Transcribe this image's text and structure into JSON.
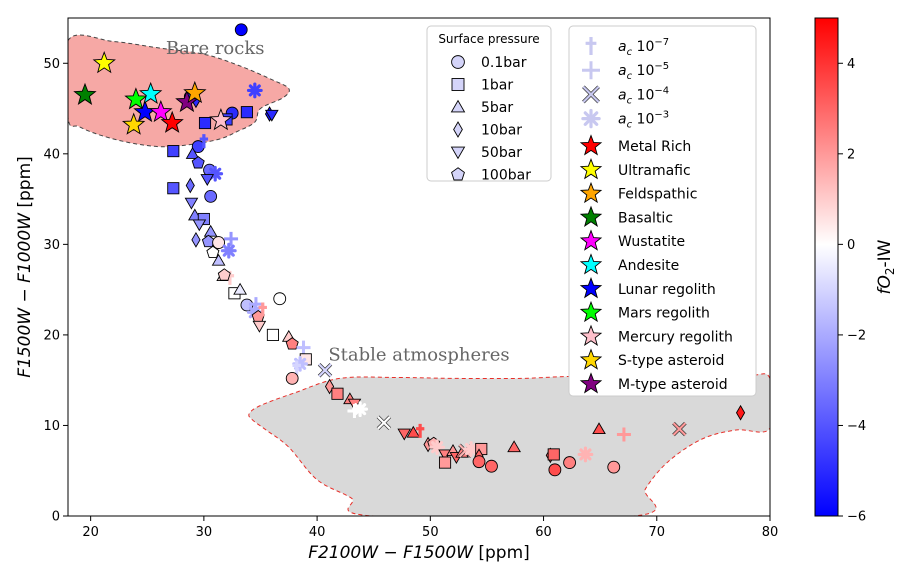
{
  "chart_data": {
    "type": "scatter",
    "xlabel_main": "F2100W − F1500W",
    "xlabel_unit": " [ppm]",
    "ylabel_main": "F1500W − F1000W",
    "ylabel_unit": " [ppm]",
    "xlim": [
      18,
      80
    ],
    "ylim": [
      0,
      55
    ],
    "xticks": [
      20,
      30,
      40,
      50,
      60,
      70,
      80
    ],
    "yticks": [
      0,
      10,
      20,
      30,
      40,
      50
    ],
    "colorbar": {
      "label": "fO2-IW",
      "label_main": "fO",
      "label_sub": "2",
      "label_rest": "-IW",
      "range": [
        -6,
        5
      ],
      "ticks": [
        -6,
        -4,
        -2,
        0,
        2,
        4
      ],
      "tick_labels": [
        "−6",
        "−4",
        "−2",
        "0",
        "2",
        "4"
      ],
      "colors": [
        "#0000ff",
        "#ffffff",
        "#ff0000"
      ]
    },
    "regions": [
      {
        "label": "Bare rocks",
        "label_at": [
          31,
          51
        ],
        "fill": "#f6a8a5",
        "stroke": "#444444",
        "boundary": [
          [
            18,
            52.5
          ],
          [
            22,
            52.4
          ],
          [
            26,
            51.7
          ],
          [
            30,
            51
          ],
          [
            33,
            49.8
          ],
          [
            36,
            48.2
          ],
          [
            37.5,
            47.2
          ],
          [
            37,
            46.2
          ],
          [
            35,
            45
          ],
          [
            34.5,
            43.5
          ],
          [
            33,
            42.5
          ],
          [
            31,
            41.5
          ],
          [
            27,
            40.8
          ],
          [
            24,
            41.1
          ],
          [
            21,
            42
          ],
          [
            19,
            43
          ],
          [
            18,
            44
          ]
        ]
      },
      {
        "label": "Stable atmospheres",
        "label_at": [
          49,
          17.2
        ],
        "fill": "#d9d9d9",
        "stroke": "#e8302a",
        "boundary": [
          [
            80,
            15.2
          ],
          [
            78,
            15.5
          ],
          [
            73,
            15.5
          ],
          [
            70,
            14.6
          ],
          [
            67,
            14.8
          ],
          [
            63,
            15.4
          ],
          [
            58,
            15.2
          ],
          [
            52,
            15.2
          ],
          [
            47,
            15.3
          ],
          [
            42,
            15.2
          ],
          [
            38,
            13.6
          ],
          [
            35,
            12.2
          ],
          [
            34,
            11.3
          ],
          [
            34.3,
            10.6
          ],
          [
            35.5,
            9.5
          ],
          [
            37.5,
            7.6
          ],
          [
            40,
            4
          ],
          [
            43,
            2
          ],
          [
            45,
            0
          ],
          [
            68,
            0
          ],
          [
            69,
            3
          ],
          [
            71,
            6
          ],
          [
            74,
            8.5
          ],
          [
            77,
            9.5
          ],
          [
            80,
            9.7
          ]
        ]
      }
    ],
    "legend_pressure": {
      "title": "Surface pressure",
      "items": [
        {
          "marker": "circle",
          "label": "0.1bar"
        },
        {
          "marker": "square",
          "label": "1bar"
        },
        {
          "marker": "triangle-up",
          "label": "5bar"
        },
        {
          "marker": "diamond-thin",
          "label": "10bar"
        },
        {
          "marker": "triangle-down",
          "label": "50bar"
        },
        {
          "marker": "pentagon",
          "label": "100bar"
        }
      ]
    },
    "legend_mixing": [
      {
        "marker": "dagger",
        "prefix": "a",
        "sub": "c",
        "base": " 10",
        "exp": "−7"
      },
      {
        "marker": "plus",
        "prefix": "a",
        "sub": "c",
        "base": " 10",
        "exp": "−5"
      },
      {
        "marker": "x",
        "prefix": "a",
        "sub": "c",
        "base": " 10",
        "exp": "−4"
      },
      {
        "marker": "asterisk",
        "prefix": "a",
        "sub": "c",
        "base": " 10",
        "exp": "−3"
      }
    ],
    "legend_surfaces": [
      {
        "label": "Metal Rich",
        "color": "#ff0000"
      },
      {
        "label": "Ultramafic",
        "color": "#ffff00"
      },
      {
        "label": "Feldspathic",
        "color": "#ffa500"
      },
      {
        "label": "Basaltic",
        "color": "#008000"
      },
      {
        "label": "Wustatite",
        "color": "#ff00ff"
      },
      {
        "label": "Andesite",
        "color": "#00ffff"
      },
      {
        "label": "Lunar regolith",
        "color": "#0000ff"
      },
      {
        "label": "Mars regolith",
        "color": "#00ff00"
      },
      {
        "label": "Mercury regolith",
        "color": "#ffc0cb"
      },
      {
        "label": "S-type asteroid",
        "color": "#ffd700"
      },
      {
        "label": "M-type asteroid",
        "color": "#800080"
      }
    ],
    "bare_rock_stars": [
      {
        "x": 19.5,
        "y": 46.5,
        "surface": "Basaltic"
      },
      {
        "x": 21.2,
        "y": 50.0,
        "surface": "Ultramafic"
      },
      {
        "x": 23.8,
        "y": 43.2,
        "surface": "S-type asteroid"
      },
      {
        "x": 24.0,
        "y": 46.0,
        "surface": "Mars regolith"
      },
      {
        "x": 24.8,
        "y": 44.6,
        "surface": "Lunar regolith"
      },
      {
        "x": 25.3,
        "y": 46.6,
        "surface": "Andesite"
      },
      {
        "x": 26.2,
        "y": 44.6,
        "surface": "Wustatite"
      },
      {
        "x": 27.2,
        "y": 43.4,
        "surface": "Metal Rich"
      },
      {
        "x": 28.5,
        "y": 45.7,
        "surface": "M-type asteroid"
      },
      {
        "x": 29.2,
        "y": 46.7,
        "surface": "Feldspathic"
      },
      {
        "x": 31.5,
        "y": 43.7,
        "surface": "Mercury regolith"
      }
    ],
    "points": [
      {
        "x": 33.3,
        "y": 53.7,
        "m": "circle",
        "c": -6
      },
      {
        "x": 28.8,
        "y": 46.3,
        "m": "circle",
        "c": -5
      },
      {
        "x": 29.3,
        "y": 45.9,
        "m": "diamond-thin",
        "c": -5
      },
      {
        "x": 34.5,
        "y": 47.0,
        "m": "asterisk",
        "c": -4.5
      },
      {
        "x": 32.5,
        "y": 44.5,
        "m": "circle",
        "c": -5
      },
      {
        "x": 32.0,
        "y": 43.8,
        "m": "square",
        "c": -4.5
      },
      {
        "x": 33.8,
        "y": 44.6,
        "m": "square",
        "c": -5
      },
      {
        "x": 35.8,
        "y": 44.4,
        "m": "diamond-thin",
        "c": -5.5
      },
      {
        "x": 36.0,
        "y": 44.3,
        "m": "triangle-down",
        "c": -5
      },
      {
        "x": 30.1,
        "y": 43.4,
        "m": "square",
        "c": -5
      },
      {
        "x": 27.3,
        "y": 40.3,
        "m": "square",
        "c": -4.5
      },
      {
        "x": 29.5,
        "y": 40.8,
        "m": "circle",
        "c": -4.5
      },
      {
        "x": 30.0,
        "y": 41.4,
        "m": "dagger",
        "c": -4
      },
      {
        "x": 29.0,
        "y": 40.0,
        "m": "triangle-up",
        "c": -4
      },
      {
        "x": 29.5,
        "y": 39.0,
        "m": "pentagon",
        "c": -4
      },
      {
        "x": 30.5,
        "y": 38.2,
        "m": "circle",
        "c": -3.5
      },
      {
        "x": 31.0,
        "y": 37.8,
        "m": "asterisk",
        "c": -4
      },
      {
        "x": 30.3,
        "y": 37.2,
        "m": "triangle-down",
        "c": -4
      },
      {
        "x": 27.3,
        "y": 36.2,
        "m": "square",
        "c": -4
      },
      {
        "x": 28.8,
        "y": 36.5,
        "m": "diamond-thin",
        "c": -3.5
      },
      {
        "x": 30.6,
        "y": 35.3,
        "m": "circle",
        "c": -3.5
      },
      {
        "x": 28.9,
        "y": 34.6,
        "m": "triangle-down",
        "c": -3
      },
      {
        "x": 29.2,
        "y": 33.2,
        "m": "triangle-up",
        "c": -3
      },
      {
        "x": 30.0,
        "y": 32.8,
        "m": "square",
        "c": -3
      },
      {
        "x": 29.6,
        "y": 32.2,
        "m": "triangle-down",
        "c": -2.5
      },
      {
        "x": 30.6,
        "y": 31.4,
        "m": "triangle-up",
        "c": -2.5
      },
      {
        "x": 29.3,
        "y": 30.5,
        "m": "diamond-thin",
        "c": -2.5
      },
      {
        "x": 30.4,
        "y": 30.3,
        "m": "pentagon",
        "c": -2.5
      },
      {
        "x": 32.4,
        "y": 30.6,
        "m": "plus",
        "c": -2.5
      },
      {
        "x": 31.3,
        "y": 30.2,
        "m": "circle",
        "c": 0.5
      },
      {
        "x": 32.2,
        "y": 29.3,
        "m": "asterisk",
        "c": -3
      },
      {
        "x": 31.3,
        "y": 28.2,
        "m": "triangle-up",
        "c": -1.5
      },
      {
        "x": 30.8,
        "y": 29.1,
        "m": "pentagon",
        "c": 0
      },
      {
        "x": 31.7,
        "y": 26.5,
        "m": "triangle-up",
        "c": 0.5
      },
      {
        "x": 32.3,
        "y": 26.3,
        "m": "dagger",
        "c": 1
      },
      {
        "x": 31.8,
        "y": 26.6,
        "m": "pentagon",
        "c": 1
      },
      {
        "x": 32.7,
        "y": 24.6,
        "m": "square",
        "c": 0
      },
      {
        "x": 33.2,
        "y": 25.0,
        "m": "triangle-up",
        "c": -0.5
      },
      {
        "x": 36.7,
        "y": 24.0,
        "m": "circle",
        "c": 0
      },
      {
        "x": 33.8,
        "y": 23.3,
        "m": "circle",
        "c": -1.5
      },
      {
        "x": 34.6,
        "y": 23.4,
        "m": "plus",
        "c": -2
      },
      {
        "x": 34.5,
        "y": 22.5,
        "m": "asterisk",
        "c": -2
      },
      {
        "x": 34.8,
        "y": 22.0,
        "m": "pentagon",
        "c": 2
      },
      {
        "x": 35.2,
        "y": 22.8,
        "m": "dagger",
        "c": 2
      },
      {
        "x": 34.9,
        "y": 21.0,
        "m": "triangle-down",
        "c": 1
      },
      {
        "x": 36.1,
        "y": 20.0,
        "m": "square",
        "c": 0
      },
      {
        "x": 37.5,
        "y": 19.8,
        "m": "triangle-up",
        "c": 1
      },
      {
        "x": 37.8,
        "y": 19.0,
        "m": "pentagon",
        "c": 2.5
      },
      {
        "x": 38.8,
        "y": 18.6,
        "m": "plus",
        "c": -1.5
      },
      {
        "x": 39.0,
        "y": 17.3,
        "m": "square",
        "c": 0.5
      },
      {
        "x": 38.5,
        "y": 16.8,
        "m": "asterisk",
        "c": -1.5
      },
      {
        "x": 38.2,
        "y": 16.4,
        "m": "dagger",
        "c": -1
      },
      {
        "x": 37.8,
        "y": 15.2,
        "m": "circle",
        "c": 1.5
      },
      {
        "x": 40.7,
        "y": 16.1,
        "m": "x",
        "c": -1
      },
      {
        "x": 41.1,
        "y": 14.3,
        "m": "diamond-thin",
        "c": 2
      },
      {
        "x": 41.8,
        "y": 13.5,
        "m": "square",
        "c": 2.5
      },
      {
        "x": 42.9,
        "y": 12.9,
        "m": "triangle-up",
        "c": 2.5
      },
      {
        "x": 43.3,
        "y": 12.4,
        "m": "triangle-down",
        "c": 2.5
      },
      {
        "x": 43.8,
        "y": 11.8,
        "m": "asterisk",
        "c": 0
      },
      {
        "x": 43.3,
        "y": 11.6,
        "m": "plus",
        "c": 0
      },
      {
        "x": 45.9,
        "y": 10.3,
        "m": "x",
        "c": 0
      },
      {
        "x": 47.7,
        "y": 9.1,
        "m": "triangle-down",
        "c": 3
      },
      {
        "x": 48.5,
        "y": 9.2,
        "m": "triangle-up",
        "c": 3.5
      },
      {
        "x": 49.1,
        "y": 9.4,
        "m": "dagger",
        "c": 3.5
      },
      {
        "x": 49.8,
        "y": 7.9,
        "m": "diamond-thin",
        "c": 2
      },
      {
        "x": 50.3,
        "y": 8.0,
        "m": "pentagon",
        "c": 1.5
      },
      {
        "x": 50.6,
        "y": 7.6,
        "m": "asterisk",
        "c": 1
      },
      {
        "x": 51.3,
        "y": 6.8,
        "m": "triangle-down",
        "c": 2.5
      },
      {
        "x": 51.3,
        "y": 5.9,
        "m": "square",
        "c": 2
      },
      {
        "x": 52.0,
        "y": 7.2,
        "m": "triangle-up",
        "c": 2
      },
      {
        "x": 52.3,
        "y": 6.5,
        "m": "triangle-down",
        "c": 3
      },
      {
        "x": 52.8,
        "y": 7.0,
        "m": "triangle-up",
        "c": 2.5
      },
      {
        "x": 53.1,
        "y": 7.2,
        "m": "x",
        "c": 1.5
      },
      {
        "x": 53.6,
        "y": 7.4,
        "m": "asterisk",
        "c": 1
      },
      {
        "x": 54.5,
        "y": 7.4,
        "m": "square",
        "c": 2
      },
      {
        "x": 54.3,
        "y": 6.6,
        "m": "diamond-thin",
        "c": 3
      },
      {
        "x": 54.3,
        "y": 6.0,
        "m": "circle",
        "c": 3
      },
      {
        "x": 55.4,
        "y": 5.5,
        "m": "circle",
        "c": 3
      },
      {
        "x": 57.4,
        "y": 7.6,
        "m": "triangle-up",
        "c": 3
      },
      {
        "x": 60.6,
        "y": 6.7,
        "m": "diamond-thin",
        "c": 3
      },
      {
        "x": 60.9,
        "y": 6.8,
        "m": "square",
        "c": 3
      },
      {
        "x": 61.0,
        "y": 5.1,
        "m": "circle",
        "c": 3.5
      },
      {
        "x": 62.3,
        "y": 5.9,
        "m": "circle",
        "c": 2.5
      },
      {
        "x": 63.7,
        "y": 6.8,
        "m": "asterisk",
        "c": 1.5
      },
      {
        "x": 64.9,
        "y": 9.6,
        "m": "triangle-up",
        "c": 3.5
      },
      {
        "x": 66.2,
        "y": 5.4,
        "m": "circle",
        "c": 2
      },
      {
        "x": 67.1,
        "y": 9.0,
        "m": "plus",
        "c": 2
      },
      {
        "x": 72.0,
        "y": 9.6,
        "m": "x",
        "c": 2
      },
      {
        "x": 77.4,
        "y": 11.4,
        "m": "diamond-thin",
        "c": 4.5
      }
    ]
  }
}
